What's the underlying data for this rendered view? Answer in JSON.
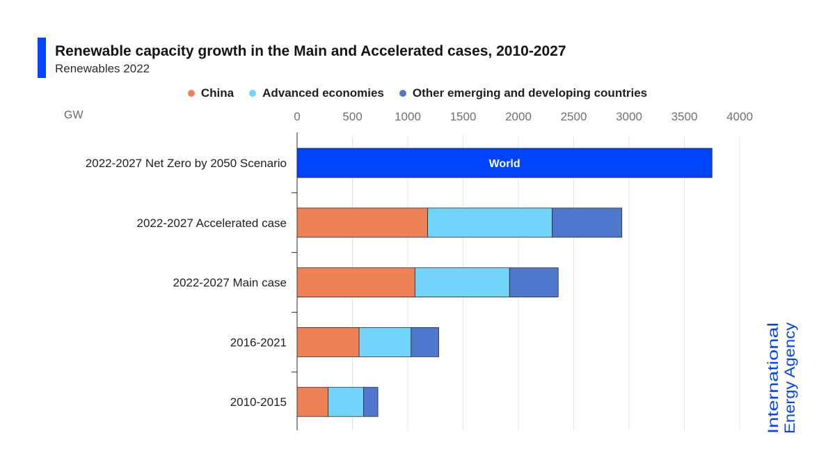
{
  "header": {
    "title": "Renewable capacity growth in the Main and Accelerated cases, 2010-2027",
    "subtitle": "Renewables 2022"
  },
  "colors": {
    "accent": "#0044ff",
    "china": "#ef8157",
    "advanced": "#71d4f8",
    "other": "#4f78cc",
    "world": "#0044ff",
    "grid": "#e5e5e5"
  },
  "logo": {
    "line1": "International",
    "line2": "Energy Agency"
  },
  "chart_data": {
    "type": "bar",
    "orientation": "horizontal",
    "stacked": true,
    "unit": "GW",
    "title": "Renewable capacity growth in the Main and Accelerated cases, 2010-2027",
    "subtitle": "Renewables 2022",
    "xlim": [
      0,
      4000
    ],
    "xticks": [
      0,
      500,
      1000,
      1500,
      2000,
      2500,
      3000,
      3500,
      4000
    ],
    "grid": true,
    "legend_position": "top",
    "categories": [
      "2022-2027 Net Zero by 2050 Scenario",
      "2022-2027 Accelerated case",
      "2022-2027  Main case",
      "2016-2021",
      "2010-2015"
    ],
    "series": [
      {
        "name": "China",
        "color": "#ef8157",
        "values": [
          null,
          1180,
          1065,
          560,
          280
        ]
      },
      {
        "name": "Advanced economies",
        "color": "#71d4f8",
        "values": [
          null,
          1125,
          855,
          470,
          320
        ]
      },
      {
        "name": "Other emerging and developing countries",
        "color": "#4f78cc",
        "values": [
          null,
          630,
          440,
          250,
          130
        ]
      }
    ],
    "world": {
      "category": "2022-2027 Net Zero by 2050 Scenario",
      "label": "World",
      "value": 3750,
      "color": "#0044ff"
    }
  }
}
